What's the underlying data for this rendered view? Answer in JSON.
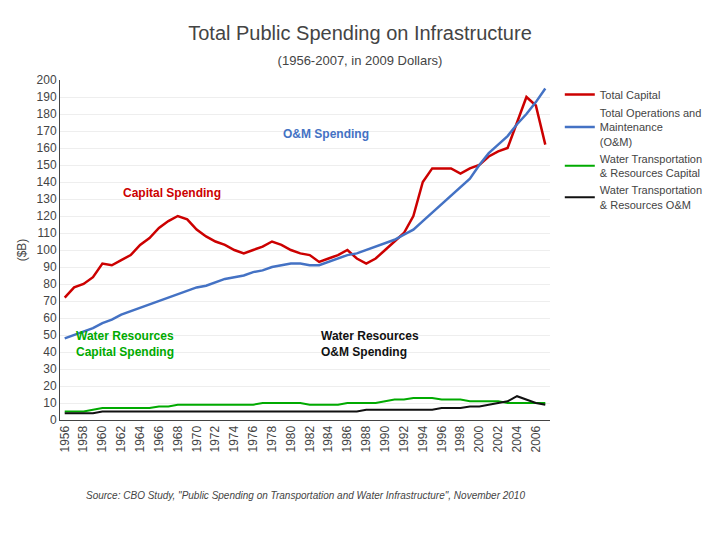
{
  "chart_data": {
    "type": "line",
    "title": "Total Public Spending on Infrastructure",
    "subtitle": "(1956-2007, in 2009 Dollars)",
    "ylabel": "($B)",
    "source": "Source: CBO Study, \"Public Spending on Transportation and Water Infrastructure\", November 2010",
    "x": [
      1956,
      1957,
      1958,
      1959,
      1960,
      1961,
      1962,
      1963,
      1964,
      1965,
      1966,
      1967,
      1968,
      1969,
      1970,
      1971,
      1972,
      1973,
      1974,
      1975,
      1976,
      1977,
      1978,
      1979,
      1980,
      1981,
      1982,
      1983,
      1984,
      1985,
      1986,
      1987,
      1988,
      1989,
      1990,
      1991,
      1992,
      1993,
      1994,
      1995,
      1996,
      1997,
      1998,
      1999,
      2000,
      2001,
      2002,
      2003,
      2004,
      2005,
      2006,
      2007
    ],
    "series": [
      {
        "name": "Total Capital",
        "color": "#cc0000",
        "values": [
          72,
          78,
          80,
          84,
          92,
          91,
          94,
          97,
          103,
          107,
          113,
          117,
          120,
          118,
          112,
          108,
          105,
          103,
          100,
          98,
          100,
          102,
          105,
          103,
          100,
          98,
          97,
          93,
          95,
          97,
          100,
          95,
          92,
          95,
          100,
          105,
          110,
          120,
          140,
          148,
          148,
          148,
          145,
          148,
          150,
          155,
          158,
          160,
          175,
          190,
          185,
          162
        ]
      },
      {
        "name": "Total Operations and\nMaintenance\n(O&M)",
        "color": "#4472c4",
        "values": [
          48,
          50,
          52,
          54,
          57,
          59,
          62,
          64,
          66,
          68,
          70,
          72,
          74,
          76,
          78,
          79,
          81,
          83,
          84,
          85,
          87,
          88,
          90,
          91,
          92,
          92,
          91,
          91,
          93,
          95,
          97,
          98,
          100,
          102,
          104,
          106,
          109,
          112,
          117,
          122,
          127,
          132,
          137,
          142,
          150,
          157,
          162,
          167,
          174,
          180,
          187,
          195
        ]
      },
      {
        "name": "Water Transportation\n& Resources Capital",
        "color": "#00aa00",
        "values": [
          5,
          5,
          5,
          6,
          7,
          7,
          7,
          7,
          7,
          7,
          8,
          8,
          9,
          9,
          9,
          9,
          9,
          9,
          9,
          9,
          9,
          10,
          10,
          10,
          10,
          10,
          9,
          9,
          9,
          9,
          10,
          10,
          10,
          10,
          11,
          12,
          12,
          13,
          13,
          13,
          12,
          12,
          12,
          11,
          11,
          11,
          11,
          10,
          10,
          10,
          10,
          10
        ]
      },
      {
        "name": "Water Transportation\n& Resources O&M",
        "color": "#111111",
        "values": [
          4,
          4,
          4,
          4,
          5,
          5,
          5,
          5,
          5,
          5,
          5,
          5,
          5,
          5,
          5,
          5,
          5,
          5,
          5,
          5,
          5,
          5,
          5,
          5,
          5,
          5,
          5,
          5,
          5,
          5,
          5,
          5,
          6,
          6,
          6,
          6,
          6,
          6,
          6,
          6,
          7,
          7,
          7,
          8,
          8,
          9,
          10,
          11,
          14,
          12,
          10,
          9
        ]
      }
    ],
    "xlim": [
      1955.5,
      2007.5
    ],
    "xticks": [
      1956,
      1958,
      1960,
      1962,
      1964,
      1966,
      1968,
      1970,
      1972,
      1974,
      1976,
      1978,
      1980,
      1982,
      1984,
      1986,
      1988,
      1990,
      1992,
      1994,
      1996,
      1998,
      2000,
      2002,
      2004,
      2006
    ],
    "ylim": [
      0,
      200
    ],
    "yticks": [
      0,
      10,
      20,
      30,
      40,
      50,
      60,
      70,
      80,
      90,
      100,
      110,
      120,
      130,
      140,
      150,
      160,
      170,
      180,
      190,
      200
    ],
    "grid": "y",
    "legend": "right",
    "annotations": [
      {
        "text": "O&M Spending",
        "x": 1979,
        "y": 163,
        "color": "#4472c4"
      },
      {
        "text": "Capital Spending",
        "x": 1962,
        "y": 128,
        "color": "#cc0000"
      },
      {
        "text": "Water Resources\nCapital Spending",
        "x": 1957,
        "y": 35,
        "color": "#00aa00"
      },
      {
        "text": "Water Resources\nO&M Spending",
        "x": 1983,
        "y": 35,
        "color": "#111111"
      }
    ]
  }
}
